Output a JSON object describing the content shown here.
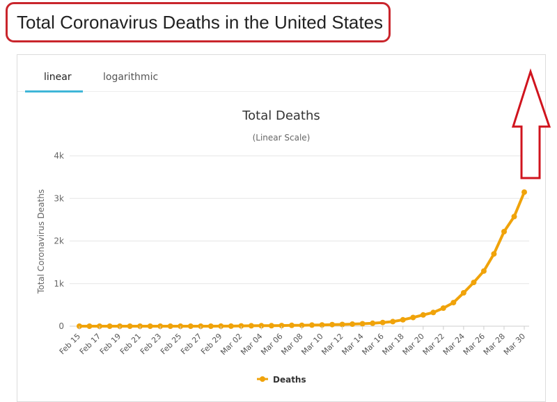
{
  "page_heading": "Total Coronavirus Deaths in the United States",
  "tabs": [
    {
      "label": "linear",
      "active": true
    },
    {
      "label": "logarithmic",
      "active": false
    }
  ],
  "colors": {
    "series": "#f0a30a",
    "heading_border": "#c9252c",
    "tab_underline": "#3fb6d8",
    "arrow": "#d0141e"
  },
  "annotation": {
    "icon": "up-arrow-icon"
  },
  "chart_data": {
    "type": "line",
    "title": "Total Deaths",
    "subtitle": "(Linear Scale)",
    "ylabel": "Total Coronavirus Deaths",
    "xlabel": "",
    "ylim": [
      0,
      4000
    ],
    "y_ticks": [
      0,
      1000,
      2000,
      3000,
      4000
    ],
    "y_tick_labels": [
      "0",
      "1k",
      "2k",
      "3k",
      "4k"
    ],
    "grid": true,
    "legend_position": "bottom-center",
    "x_tick_labels": [
      "Feb 15",
      "Feb 17",
      "Feb 19",
      "Feb 21",
      "Feb 23",
      "Feb 25",
      "Feb 27",
      "Feb 29",
      "Mar 02",
      "Mar 04",
      "Mar 06",
      "Mar 08",
      "Mar 10",
      "Mar 12",
      "Mar 14",
      "Mar 16",
      "Mar 18",
      "Mar 20",
      "Mar 22",
      "Mar 24",
      "Mar 26",
      "Mar 28",
      "Mar 30"
    ],
    "x": [
      "Feb 15",
      "Feb 16",
      "Feb 17",
      "Feb 18",
      "Feb 19",
      "Feb 20",
      "Feb 21",
      "Feb 22",
      "Feb 23",
      "Feb 24",
      "Feb 25",
      "Feb 26",
      "Feb 27",
      "Feb 28",
      "Feb 29",
      "Mar 01",
      "Mar 02",
      "Mar 03",
      "Mar 04",
      "Mar 05",
      "Mar 06",
      "Mar 07",
      "Mar 08",
      "Mar 09",
      "Mar 10",
      "Mar 11",
      "Mar 12",
      "Mar 13",
      "Mar 14",
      "Mar 15",
      "Mar 16",
      "Mar 17",
      "Mar 18",
      "Mar 19",
      "Mar 20",
      "Mar 21",
      "Mar 22",
      "Mar 23",
      "Mar 24",
      "Mar 25",
      "Mar 26",
      "Mar 27",
      "Mar 28",
      "Mar 29",
      "Mar 30"
    ],
    "series": [
      {
        "name": "Deaths",
        "values": [
          0,
          0,
          0,
          0,
          0,
          0,
          0,
          0,
          0,
          0,
          0,
          0,
          0,
          0,
          1,
          1,
          6,
          9,
          11,
          12,
          15,
          19,
          22,
          26,
          30,
          38,
          41,
          49,
          57,
          68,
          86,
          108,
          150,
          204,
          264,
          321,
          424,
          553,
          783,
          1027,
          1295,
          1696,
          2220,
          2573,
          3148
        ]
      }
    ]
  }
}
